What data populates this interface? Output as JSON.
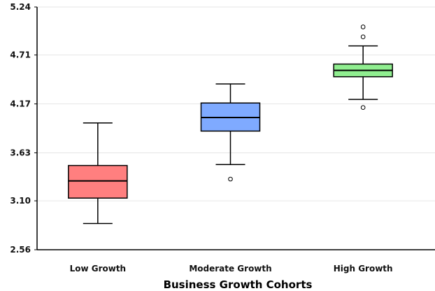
{
  "chart_data": {
    "type": "box",
    "title": "",
    "xlabel": "Business Growth Cohorts",
    "ylabel": "",
    "ylim": [
      2.56,
      5.24
    ],
    "yticks": [
      "2.56",
      "3.10",
      "3.63",
      "4.17",
      "4.71",
      "5.24"
    ],
    "grid": "horizontal",
    "categories": [
      "Low Growth",
      "Moderate Growth",
      "High Growth"
    ],
    "boxes": [
      {
        "category": "Low Growth",
        "whisker_low": 2.85,
        "q1": 3.13,
        "median": 3.32,
        "q3": 3.49,
        "whisker_high": 3.96,
        "outliers": [],
        "color": "#ff7f7f"
      },
      {
        "category": "Moderate Growth",
        "whisker_low": 3.5,
        "q1": 3.87,
        "median": 4.02,
        "q3": 4.18,
        "whisker_high": 4.39,
        "outliers": [
          3.34
        ],
        "color": "#7faaff"
      },
      {
        "category": "High Growth",
        "whisker_low": 4.22,
        "q1": 4.47,
        "median": 4.54,
        "q3": 4.61,
        "whisker_high": 4.81,
        "outliers": [
          4.13,
          4.91,
          5.02
        ],
        "color": "#90ee90"
      }
    ]
  }
}
